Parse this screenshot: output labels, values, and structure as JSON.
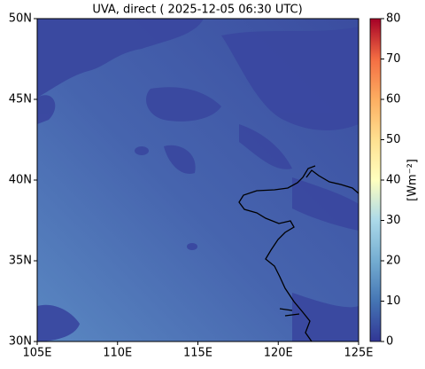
{
  "chart_data": {
    "type": "map",
    "title": "UVA, direct ( 2025-12-05 06:30 UTC)",
    "xlim": [
      105,
      125
    ],
    "ylim": [
      30,
      50
    ],
    "xticks": [
      {
        "value": 105,
        "label": "105E"
      },
      {
        "value": 110,
        "label": "110E"
      },
      {
        "value": 115,
        "label": "115E"
      },
      {
        "value": 120,
        "label": "120E"
      },
      {
        "value": 125,
        "label": "125E"
      }
    ],
    "yticks": [
      {
        "value": 30,
        "label": "30N"
      },
      {
        "value": 35,
        "label": "35N"
      },
      {
        "value": 40,
        "label": "40N"
      },
      {
        "value": 45,
        "label": "45N"
      },
      {
        "value": 50,
        "label": "50N"
      }
    ],
    "colorbar": {
      "label": "[Wm⁻²]",
      "lim": [
        0,
        80
      ],
      "ticks": [
        0,
        10,
        20,
        30,
        40,
        50,
        60,
        70,
        80
      ]
    }
  }
}
